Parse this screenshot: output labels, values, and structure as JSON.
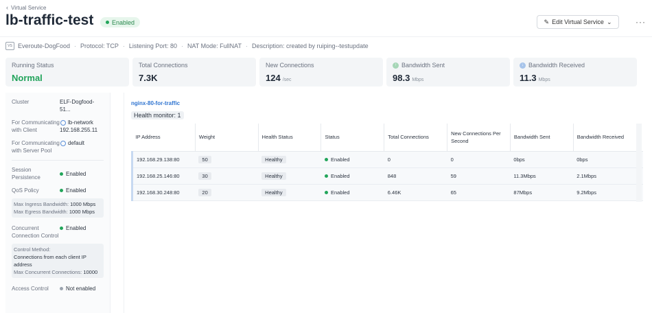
{
  "breadcrumb": {
    "label": "Virtual Service"
  },
  "header": {
    "title": "lb-traffic-test",
    "status": "Enabled",
    "edit_label": "Edit Virtual Service",
    "more_label": "···"
  },
  "meta": {
    "icon_text": "VS",
    "project": "Everoute-DogFood",
    "protocol": "Protocol: TCP",
    "port": "Listening Port: 80",
    "nat": "NAT Mode: FullNAT",
    "description": "Description: created by ruiping--testupdate",
    "separator": "·"
  },
  "stats": [
    {
      "label": "Running Status",
      "value": "Normal",
      "unit": ""
    },
    {
      "label": "Total Connections",
      "value": "7.3K",
      "unit": ""
    },
    {
      "label": "New Connections",
      "value": "124",
      "unit": "/sec"
    },
    {
      "label": "Bandwidth Sent",
      "value": "98.3",
      "unit": "Mbps"
    },
    {
      "label": "Bandwidth Received",
      "value": "11.3",
      "unit": "Mbps"
    }
  ],
  "details": {
    "cluster_label": "Cluster",
    "cluster_value": "ELF-Dogfood-51...",
    "client_label": "For Communicating with Client",
    "client_network": "lb-network",
    "client_ip": "192.168.255.11",
    "server_label": "For Communicating with Server Pool",
    "server_network": "default",
    "session_label": "Session Persistence",
    "session_value": "Enabled",
    "qos_label": "QoS Policy",
    "qos_value": "Enabled",
    "ingress_label": "Max Ingress Bandwidth:",
    "ingress_value": "1000 Mbps",
    "egress_label": "Max Egress Bandwidth:",
    "egress_value": "1000 Mbps",
    "conc_label": "Concurrent Connection Control",
    "conc_value": "Enabled",
    "control_method_label": "Control Method:",
    "control_method_value": "Connections from each client IP address",
    "max_conc_label": "Max Concurrent Connections:",
    "max_conc_value": "10000",
    "access_label": "Access Control",
    "access_value": "Not enabled"
  },
  "pool": {
    "name": "nginx-80-for-traffic",
    "health_monitor": "Health monitor: 1",
    "columns": [
      "IP Address",
      "Weight",
      "Health Status",
      "Status",
      "Total Connections",
      "New Connections Per Second",
      "Bandwidth Sent",
      "Bandwidth Received"
    ],
    "rows": [
      {
        "ip": "192.168.29.138:80",
        "weight": "50",
        "health": "Healthy",
        "status": "Enabled",
        "total": "0",
        "new": "0",
        "sent": "0bps",
        "received": "0bps"
      },
      {
        "ip": "192.168.25.146:80",
        "weight": "30",
        "health": "Healthy",
        "status": "Enabled",
        "total": "848",
        "new": "59",
        "sent": "11.3Mbps",
        "received": "2.1Mbps"
      },
      {
        "ip": "192.168.30.248:80",
        "weight": "20",
        "health": "Healthy",
        "status": "Enabled",
        "total": "6.46K",
        "new": "65",
        "sent": "87Mbps",
        "received": "9.2Mbps"
      }
    ]
  },
  "colors": {
    "accent": "#2f74d0",
    "success": "#22a55a",
    "muted": "#9aa3ae"
  }
}
